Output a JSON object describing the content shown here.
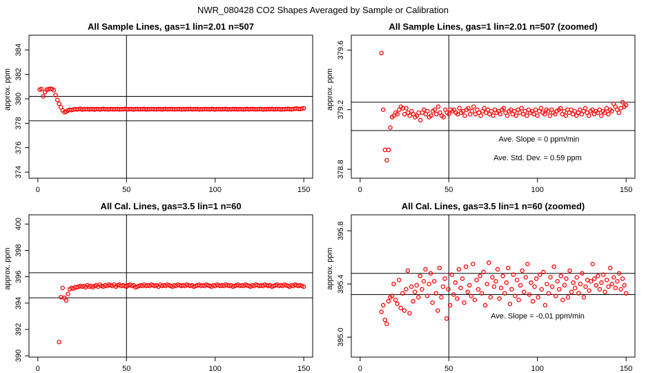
{
  "figure_title": "NWR_080428  CO2 Shapes Averaged by Sample or Calibration",
  "colors": {
    "points": "#ff0000",
    "lines": "#000000",
    "background": "#ffffff"
  },
  "chart_data": [
    {
      "type": "scatter",
      "title": "All Sample Lines, gas=1 lin=2.01 n=507",
      "xlabel": "",
      "ylabel": "approx. ppm",
      "xlim": [
        -5,
        155
      ],
      "ylim": [
        373.5,
        385.2
      ],
      "xticks": [
        "0",
        "50",
        "100",
        "150"
      ],
      "yticks": [
        "374",
        "376",
        "378",
        "380",
        "382",
        "384"
      ],
      "hlines": [
        380.2,
        378.2
      ],
      "vline": 50,
      "annotations": [],
      "series": [
        {
          "x0": 1,
          "x1": 150,
          "y": [
            380.75,
            380.8,
            380.2,
            380.55,
            380.75,
            380.78,
            380.82,
            380.8,
            380.7,
            380.3,
            379.9,
            379.6,
            379.3,
            379.05,
            378.9,
            378.95,
            379.05,
            379.1,
            379.08,
            379.12,
            379.15,
            379.13,
            379.15,
            379.18,
            379.12,
            379.15,
            379.14,
            379.16,
            379.13,
            379.15,
            379.15,
            379.12,
            379.16,
            379.15,
            379.13,
            379.15,
            379.17,
            379.14,
            379.15,
            379.13,
            379.16,
            379.15,
            379.14,
            379.15,
            379.16,
            379.13,
            379.15,
            379.14,
            379.17,
            379.15,
            379.14,
            379.16,
            379.15,
            379.13,
            379.15,
            379.16,
            379.14,
            379.15,
            379.15,
            379.17,
            379.13,
            379.15,
            379.14,
            379.16,
            379.15,
            379.15,
            379.14,
            379.16,
            379.15,
            379.13,
            379.15,
            379.17,
            379.14,
            379.15,
            379.16,
            379.15,
            379.14,
            379.15,
            379.15,
            379.16,
            379.13,
            379.15,
            379.14,
            379.16,
            379.15,
            379.17,
            379.14,
            379.15,
            379.15,
            379.16,
            379.13,
            379.15,
            379.14,
            379.16,
            379.15,
            379.15,
            379.14,
            379.17,
            379.15,
            379.13,
            379.15,
            379.16,
            379.14,
            379.15,
            379.15,
            379.17,
            379.13,
            379.15,
            379.14,
            379.16,
            379.15,
            379.15,
            379.14,
            379.16,
            379.15,
            379.13,
            379.15,
            379.17,
            379.14,
            379.15,
            379.16,
            379.15,
            379.14,
            379.15,
            379.15,
            379.16,
            379.13,
            379.15,
            379.14,
            379.16,
            379.15,
            379.17,
            379.14,
            379.15,
            379.15,
            379.16,
            379.13,
            379.15,
            379.14,
            379.16,
            379.18,
            379.15,
            379.14,
            379.16,
            379.18,
            379.2,
            379.17,
            379.16,
            379.2,
            379.22
          ]
        }
      ]
    },
    {
      "type": "scatter",
      "title": "All Sample Lines, gas=1 lin=2.01 n=507 (zoomed)",
      "xlabel": "",
      "ylabel": "approx. ppm",
      "xlim": [
        -5,
        155
      ],
      "ylim": [
        378.74,
        379.7
      ],
      "xticks": [
        "0",
        "50",
        "100",
        "150"
      ],
      "yticks": [
        "378.8",
        "379.2",
        "379.6"
      ],
      "hlines": [
        379.25,
        379.06
      ],
      "vline": 50,
      "annotations": [
        "Ave. Slope =  0  ppm/min",
        "Ave. Std. Dev. =  0.59  ppm"
      ],
      "series": [
        {
          "x0": 12,
          "x1": 150,
          "y": [
            379.58,
            379.2,
            378.93,
            378.86,
            378.93,
            379.08,
            379.15,
            379.16,
            379.18,
            379.17,
            379.2,
            379.22,
            379.21,
            379.17,
            379.21,
            379.18,
            379.16,
            379.19,
            379.17,
            379.15,
            379.16,
            379.18,
            379.13,
            379.18,
            379.2,
            379.17,
            379.19,
            379.15,
            379.16,
            379.19,
            379.2,
            379.17,
            379.22,
            379.18,
            379.16,
            379.15,
            379.2,
            379.18,
            379.17,
            379.2,
            379.19,
            379.2,
            379.18,
            379.17,
            379.21,
            379.18,
            379.19,
            379.16,
            379.2,
            379.21,
            379.17,
            379.19,
            379.22,
            379.17,
            379.2,
            379.18,
            379.16,
            379.19,
            379.21,
            379.18,
            379.2,
            379.17,
            379.19,
            379.16,
            379.2,
            379.18,
            379.19,
            379.17,
            379.2,
            379.21,
            379.18,
            379.16,
            379.19,
            379.2,
            379.17,
            379.19,
            379.16,
            379.2,
            379.18,
            379.21,
            379.17,
            379.19,
            379.16,
            379.2,
            379.18,
            379.19,
            379.17,
            379.2,
            379.16,
            379.19,
            379.21,
            379.18,
            379.17,
            379.2,
            379.19,
            379.16,
            379.2,
            379.18,
            379.17,
            379.19,
            379.2,
            379.21,
            379.17,
            379.19,
            379.16,
            379.2,
            379.18,
            379.2,
            379.17,
            379.19,
            379.16,
            379.18,
            379.2,
            379.17,
            379.19,
            379.21,
            379.18,
            379.16,
            379.19,
            379.2,
            379.17,
            379.19,
            379.18,
            379.2,
            379.16,
            379.19,
            379.18,
            379.21,
            379.17,
            379.2,
            379.19,
            379.24,
            379.22,
            379.2,
            379.18,
            379.21,
            379.25,
            379.22,
            379.23
          ]
        }
      ]
    },
    {
      "type": "scatter",
      "title": "All Cal. Lines, gas=3.5 lin=1 n=60",
      "xlabel": "",
      "ylabel": "approx. ppm",
      "xlim": [
        -5,
        155
      ],
      "ylim": [
        389.9,
        400.7
      ],
      "xticks": [
        "0",
        "50",
        "100",
        "150"
      ],
      "yticks": [
        "390",
        "392",
        "394",
        "396",
        "398",
        "400"
      ],
      "hlines": [
        396.3,
        394.4
      ],
      "vline": 50,
      "annotations": [],
      "series": [
        {
          "x0": 12,
          "x1": 150,
          "y": [
            391.05,
            394.45,
            395.15,
            394.4,
            394.2,
            394.7,
            395.05,
            395.15,
            395.1,
            395.2,
            395.2,
            395.25,
            395.3,
            395.25,
            395.3,
            395.2,
            395.35,
            395.25,
            395.3,
            395.2,
            395.3,
            395.35,
            395.25,
            395.4,
            395.3,
            395.25,
            395.35,
            395.3,
            395.4,
            395.35,
            395.3,
            395.4,
            395.25,
            395.35,
            395.4,
            395.3,
            395.35,
            395.3,
            395.25,
            395.35,
            395.4,
            395.3,
            395.35,
            395.2,
            395.25,
            395.3,
            395.35,
            395.3,
            395.4,
            395.3,
            395.35,
            395.3,
            395.4,
            395.35,
            395.3,
            395.35,
            395.25,
            395.4,
            395.3,
            395.35,
            395.3,
            395.4,
            395.35,
            395.3,
            395.25,
            395.35,
            395.3,
            395.4,
            395.35,
            395.3,
            395.35,
            395.3,
            395.4,
            395.35,
            395.3,
            395.35,
            395.25,
            395.3,
            395.35,
            395.4,
            395.3,
            395.35,
            395.3,
            395.4,
            395.35,
            395.3,
            395.25,
            395.35,
            395.3,
            395.4,
            395.35,
            395.3,
            395.35,
            395.3,
            395.4,
            395.35,
            395.3,
            395.35,
            395.25,
            395.3,
            395.35,
            395.4,
            395.3,
            395.35,
            395.3,
            395.4,
            395.35,
            395.3,
            395.25,
            395.35,
            395.3,
            395.4,
            395.35,
            395.3,
            395.35,
            395.3,
            395.4,
            395.35,
            395.3,
            395.35,
            395.25,
            395.3,
            395.35,
            395.4,
            395.3,
            395.35,
            395.3,
            395.4,
            395.35,
            395.3,
            395.25,
            395.35,
            395.3,
            395.4,
            395.35,
            395.3,
            395.35,
            395.3,
            395.25
          ]
        }
      ]
    },
    {
      "type": "scatter",
      "title": "All Cal. Lines, gas=3.5 lin=1 n=60 (zoomed)",
      "xlabel": "",
      "ylabel": "approx. ppm",
      "xlim": [
        -5,
        155
      ],
      "ylim": [
        394.85,
        395.92
      ],
      "xticks": [
        "0",
        "50",
        "100",
        "150"
      ],
      "yticks": [
        "395.0",
        "395.4",
        "395.8"
      ],
      "hlines": [
        395.48,
        395.32
      ],
      "vline": 50,
      "annotations": [
        "Ave. Slope =  -0.01  ppm/min"
      ],
      "series": [
        {
          "x0": 12,
          "x1": 150,
          "y": [
            395.19,
            395.24,
            395.13,
            395.1,
            395.27,
            395.3,
            395.31,
            395.4,
            395.28,
            395.25,
            395.43,
            395.22,
            395.33,
            395.2,
            395.36,
            395.5,
            395.18,
            395.38,
            395.27,
            395.34,
            395.39,
            395.3,
            395.46,
            395.36,
            395.42,
            395.51,
            395.31,
            395.4,
            395.48,
            395.26,
            395.42,
            395.33,
            395.2,
            395.52,
            395.3,
            395.38,
            395.44,
            395.14,
            395.36,
            395.24,
            395.47,
            395.32,
            395.41,
            395.29,
            395.51,
            395.37,
            395.44,
            395.26,
            395.53,
            395.34,
            395.39,
            395.31,
            395.55,
            395.28,
            395.43,
            395.36,
            395.46,
            395.33,
            395.49,
            395.24,
            395.4,
            395.56,
            395.3,
            395.45,
            395.38,
            395.42,
            395.51,
            395.29,
            395.37,
            395.46,
            395.33,
            395.41,
            395.52,
            395.25,
            395.36,
            395.47,
            395.31,
            395.43,
            395.28,
            395.39,
            395.5,
            395.34,
            395.45,
            395.55,
            395.32,
            395.41,
            395.27,
            395.38,
            395.44,
            395.3,
            395.47,
            395.36,
            395.49,
            395.24,
            395.4,
            395.33,
            395.45,
            395.38,
            395.53,
            395.31,
            395.42,
            395.36,
            395.46,
            395.28,
            395.39,
            395.44,
            395.3,
            395.5,
            395.34,
            395.41,
            395.37,
            395.45,
            395.33,
            395.4,
            395.48,
            395.3,
            395.38,
            395.43,
            395.35,
            395.42,
            395.55,
            395.44,
            395.39,
            395.46,
            395.36,
            395.41,
            395.47,
            395.34,
            395.43,
            395.38,
            395.52,
            395.4,
            395.45,
            395.37,
            395.42,
            395.48,
            395.36,
            395.44,
            395.39,
            395.33
          ]
        }
      ]
    }
  ]
}
